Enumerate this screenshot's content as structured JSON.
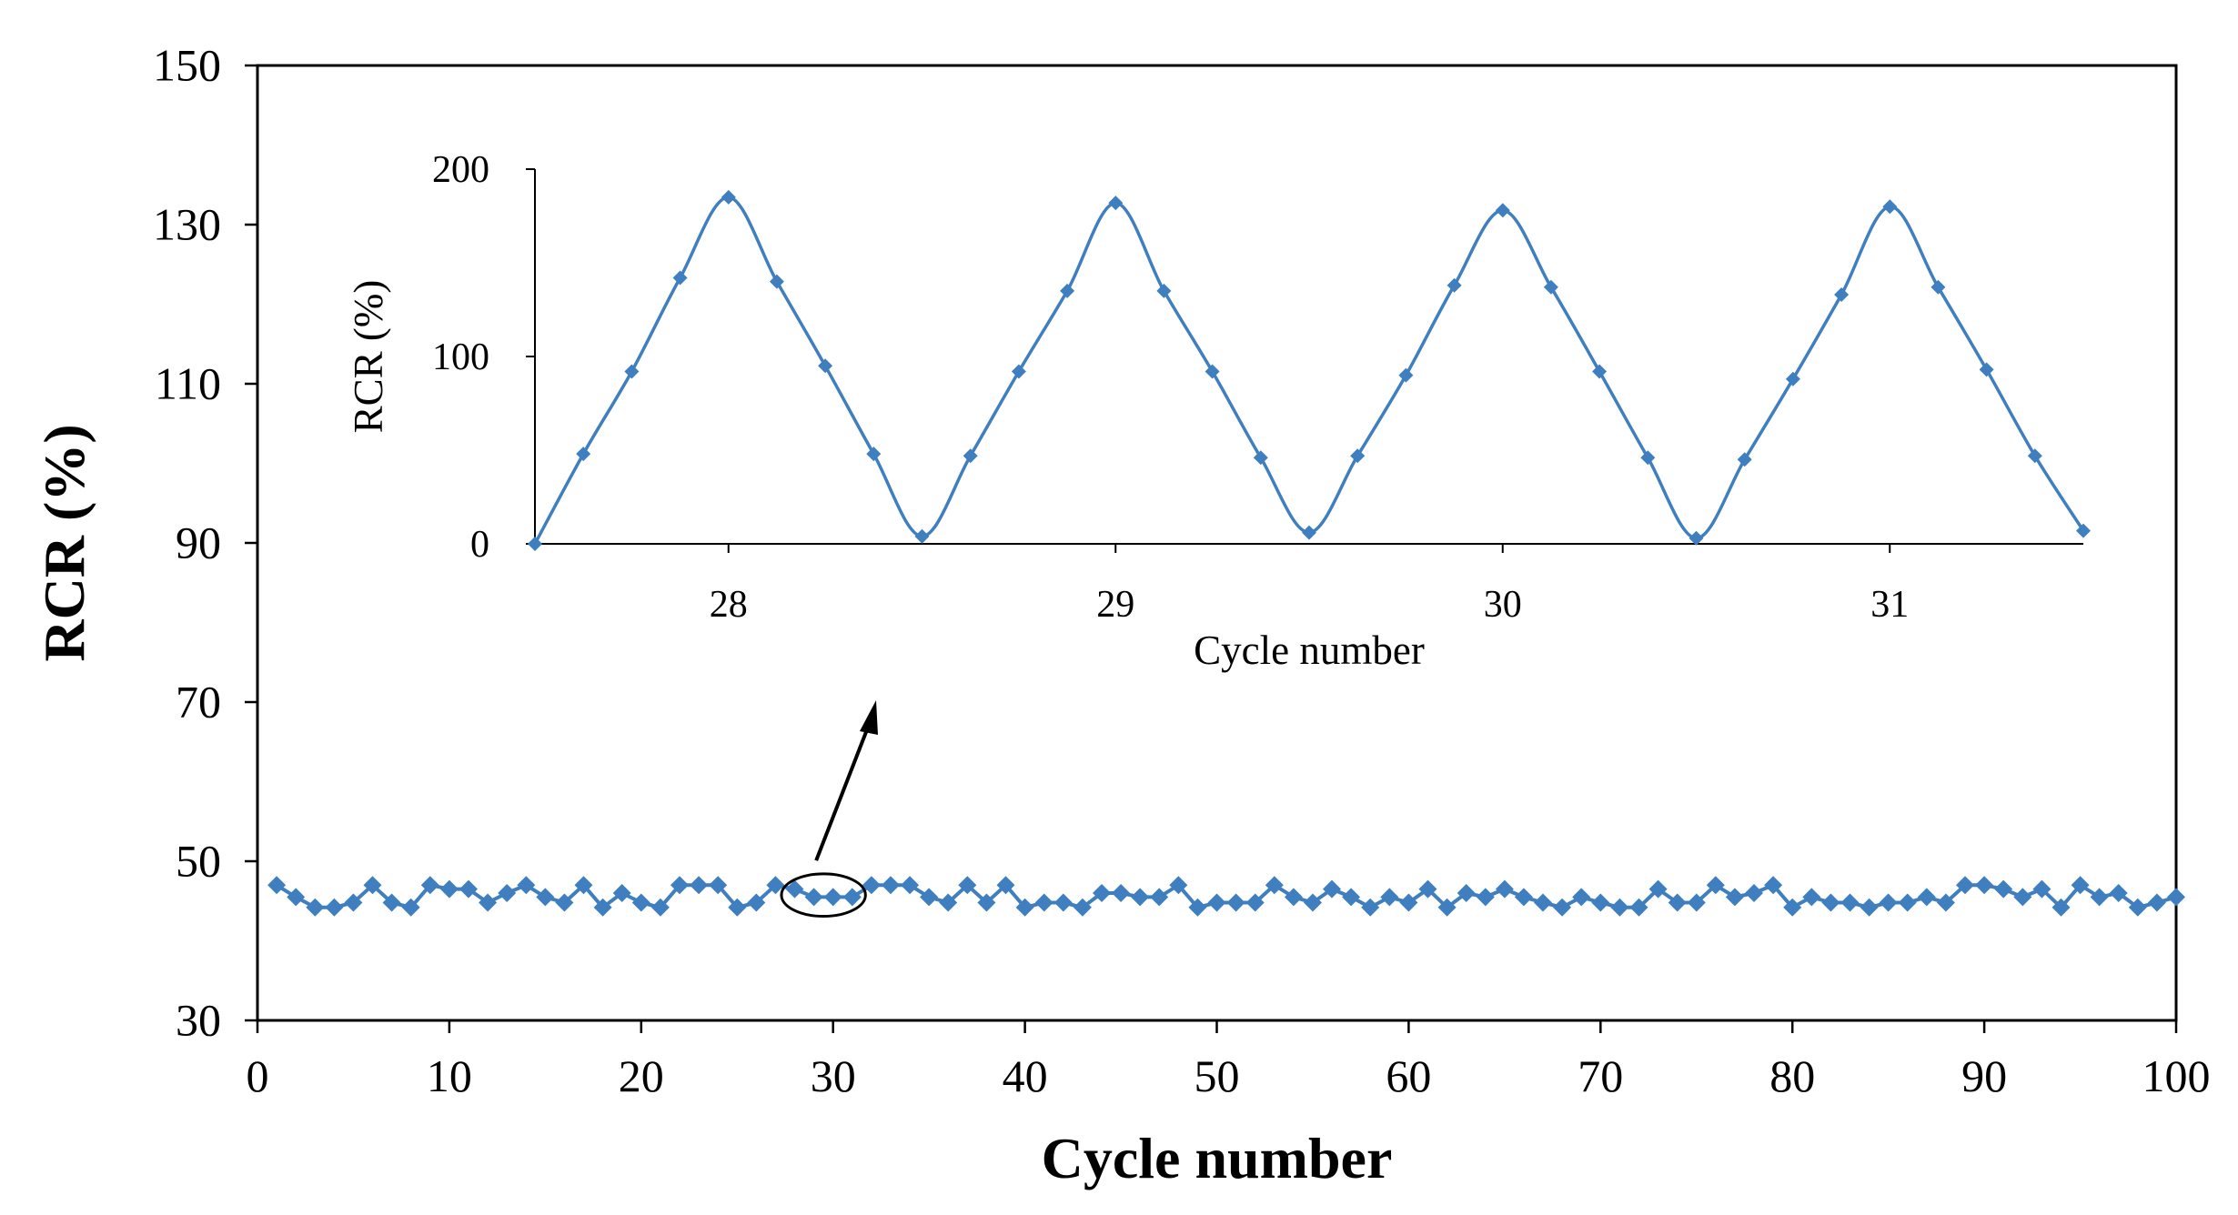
{
  "chart_data": [
    {
      "id": "main",
      "type": "line",
      "xlabel": "Cycle number",
      "ylabel": "RCR (%)",
      "xlim": [
        0,
        100
      ],
      "ylim": [
        30,
        150
      ],
      "xticks": [
        0,
        10,
        20,
        30,
        40,
        50,
        60,
        70,
        80,
        90,
        100
      ],
      "yticks": [
        30,
        50,
        70,
        90,
        110,
        130,
        150
      ],
      "grid": false,
      "color": "#3f7fbf",
      "series": [
        {
          "name": "RCR",
          "x": [
            1,
            2,
            3,
            4,
            5,
            6,
            7,
            8,
            9,
            10,
            11,
            12,
            13,
            14,
            15,
            16,
            17,
            18,
            19,
            20,
            21,
            22,
            23,
            24,
            25,
            26,
            27,
            28,
            29,
            30,
            31,
            32,
            33,
            34,
            35,
            36,
            37,
            38,
            39,
            40,
            41,
            42,
            43,
            44,
            45,
            46,
            47,
            48,
            49,
            50,
            51,
            52,
            53,
            54,
            55,
            56,
            57,
            58,
            59,
            60,
            61,
            62,
            63,
            64,
            65,
            66,
            67,
            68,
            69,
            70,
            71,
            72,
            73,
            74,
            75,
            76,
            77,
            78,
            79,
            80,
            81,
            82,
            83,
            84,
            85,
            86,
            87,
            88,
            89,
            90,
            91,
            92,
            93,
            94,
            95,
            96,
            97,
            98,
            99,
            100
          ],
          "values": [
            47,
            45.5,
            44.2,
            44.2,
            44.8,
            47,
            44.8,
            44.2,
            47,
            46.5,
            46.5,
            44.8,
            46,
            47,
            45.5,
            44.8,
            47,
            44.2,
            46,
            44.8,
            44.2,
            47,
            47,
            47,
            44.2,
            44.8,
            47,
            46.5,
            45.5,
            45.5,
            45.5,
            47,
            47,
            47,
            45.5,
            44.8,
            47,
            44.8,
            47,
            44.2,
            44.8,
            44.8,
            44.2,
            46,
            46,
            45.5,
            45.5,
            47,
            44.2,
            44.8,
            44.8,
            44.8,
            47,
            45.5,
            44.8,
            46.5,
            45.5,
            44.2,
            45.5,
            44.8,
            46.5,
            44.2,
            46,
            45.5,
            46.5,
            45.5,
            44.8,
            44.2,
            45.5,
            44.8,
            44.2,
            44.2,
            46.5,
            44.8,
            44.8,
            47,
            45.5,
            46,
            47,
            44.2,
            45.5,
            44.8,
            44.8,
            44.2,
            44.8,
            44.8,
            45.5,
            44.8,
            47,
            47,
            46.5,
            45.5,
            46.5,
            44.2,
            47,
            45.5,
            46,
            44.2,
            44.8,
            45.5
          ]
        }
      ]
    },
    {
      "id": "inset",
      "type": "line",
      "xlabel": "Cycle number",
      "ylabel": "RCR (%)",
      "xlim": [
        27.5,
        31.5
      ],
      "ylim": [
        0,
        200
      ],
      "xticks": [
        28,
        29,
        30,
        31
      ],
      "yticks": [
        0,
        100,
        200
      ],
      "grid": false,
      "color": "#3f7fbf",
      "series": [
        {
          "name": "RCR",
          "x": [
            27.5,
            27.625,
            27.75,
            27.875,
            28,
            28.125,
            28.25,
            28.375,
            28.5,
            28.625,
            28.75,
            28.875,
            29,
            29.125,
            29.25,
            29.375,
            29.5,
            29.625,
            29.75,
            29.875,
            30,
            30.125,
            30.25,
            30.375,
            30.5,
            30.625,
            30.75,
            30.875,
            31,
            31.125,
            31.25,
            31.375,
            31.5
          ],
          "values": [
            0,
            48,
            92,
            142,
            185,
            140,
            95,
            48,
            4,
            47,
            92,
            135,
            182,
            135,
            92,
            46,
            6,
            47,
            90,
            138,
            178,
            137,
            92,
            46,
            3,
            45,
            88,
            133,
            180,
            137,
            93,
            47,
            7
          ]
        }
      ]
    }
  ],
  "callout": {
    "zoom_x": [
      27.5,
      31.5
    ],
    "zoom_y": [
      44,
      47.5
    ]
  }
}
